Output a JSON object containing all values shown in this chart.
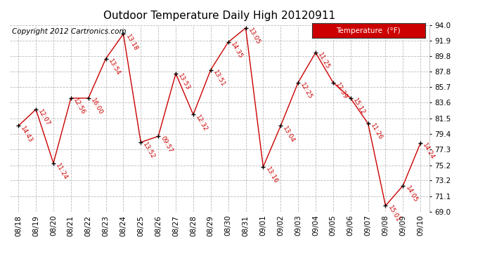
{
  "title": "Outdoor Temperature Daily High 20120911",
  "copyright": "Copyright 2012 Cartronics.com",
  "legend_label": "Temperature  (°F)",
  "dates": [
    "08/18",
    "08/19",
    "08/20",
    "08/21",
    "08/22",
    "08/23",
    "08/24",
    "08/25",
    "08/26",
    "08/27",
    "08/28",
    "08/29",
    "08/30",
    "08/31",
    "09/01",
    "09/02",
    "09/03",
    "09/04",
    "09/05",
    "09/06",
    "09/07",
    "09/08",
    "09/09",
    "09/10"
  ],
  "temperatures": [
    80.5,
    82.7,
    75.5,
    84.2,
    84.2,
    89.5,
    92.8,
    78.3,
    79.1,
    87.5,
    82.0,
    88.0,
    91.7,
    93.6,
    75.0,
    80.5,
    86.3,
    90.3,
    86.3,
    84.2,
    80.8,
    69.8,
    72.5,
    78.2
  ],
  "time_labels": [
    "14:43",
    "12:07",
    "11:24",
    "12:56",
    "16:00",
    "13:54",
    "13:18",
    "13:52",
    "09:57",
    "13:53",
    "12:32",
    "13:51",
    "14:35",
    "13:05",
    "13:16",
    "13:04",
    "12:25",
    "11:25",
    "12:39",
    "15:12",
    "11:26",
    "15:01",
    "14:05",
    "14:24"
  ],
  "ylim_min": 69.0,
  "ylim_max": 94.0,
  "yticks": [
    69.0,
    71.1,
    73.2,
    75.2,
    77.3,
    79.4,
    81.5,
    83.6,
    85.7,
    87.8,
    89.8,
    91.9,
    94.0
  ],
  "line_color": "#cc0000",
  "marker_color": "#000000",
  "text_color": "#cc0000",
  "bg_color": "#ffffff",
  "grid_color": "#bbbbbb",
  "legend_bg": "#cc0000",
  "legend_text_color": "#ffffff",
  "title_fontsize": 11,
  "label_fontsize": 6.5,
  "tick_fontsize": 7.5,
  "copyright_fontsize": 7.5
}
